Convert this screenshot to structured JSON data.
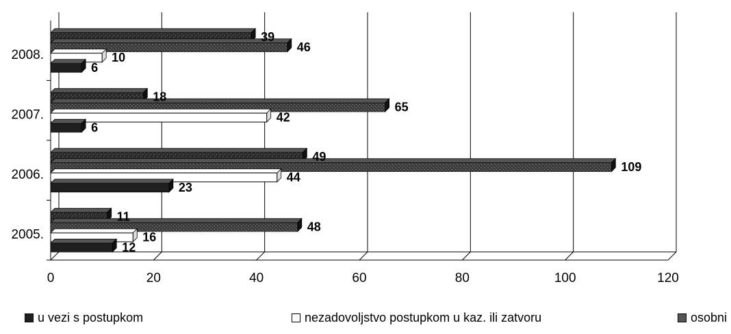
{
  "chart_data": {
    "type": "bar",
    "orientation": "horizontal",
    "categories": [
      "2005.",
      "2006.",
      "2007.",
      "2008."
    ],
    "series": [
      {
        "name": "u vezi s postupkom",
        "values": [
          12,
          23,
          6,
          6
        ],
        "color": "#1f1f1f"
      },
      {
        "name": "nezadovoljstvo postupkom u kaz. ili zatvoru",
        "values": [
          16,
          44,
          42,
          10
        ],
        "color": "#ffffff"
      },
      {
        "name": "osobni",
        "values": [
          48,
          109,
          65,
          46
        ],
        "color": "#2e2e2e"
      },
      {
        "name": "",
        "values": [
          11,
          49,
          18,
          39
        ],
        "color": "#3a3a3a"
      }
    ],
    "xlim": [
      0,
      120
    ],
    "xticks": [
      "0",
      "20",
      "40",
      "60",
      "80",
      "100",
      "120"
    ],
    "grid": true,
    "legend_position": "bottom"
  },
  "legend": {
    "item1": "u vezi s postupkom",
    "item2": "nezadovoljstvo postupkom u kaz. ili zatvoru",
    "item3": "osobni"
  }
}
